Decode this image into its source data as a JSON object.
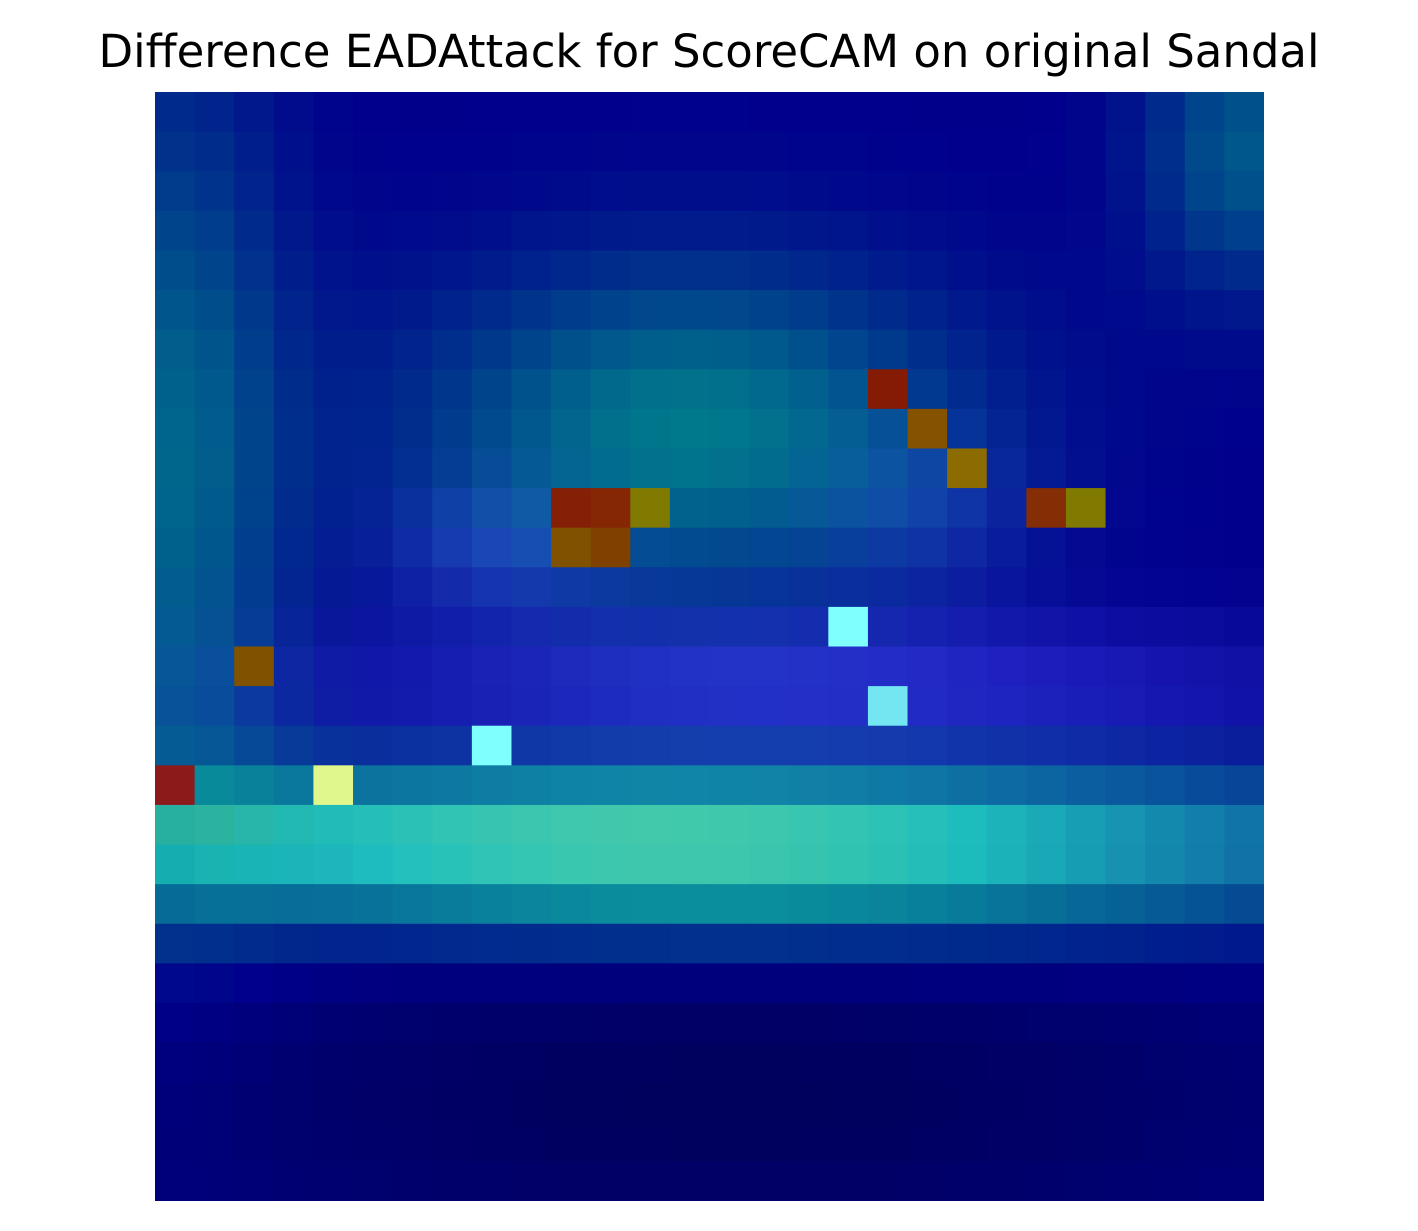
{
  "figure": {
    "title": "Difference EADAttack for ScoreCAM on original Sandal"
  },
  "image": {
    "kind": "heatmap-overlay",
    "colormap": "jet",
    "grid": [
      28,
      28
    ],
    "description_colors": {
      "background": "#000080",
      "hot": "#8B1A1A",
      "warm": "#7A5A00",
      "cyan": "#7FFFFF",
      "teal": "#00787A"
    }
  }
}
